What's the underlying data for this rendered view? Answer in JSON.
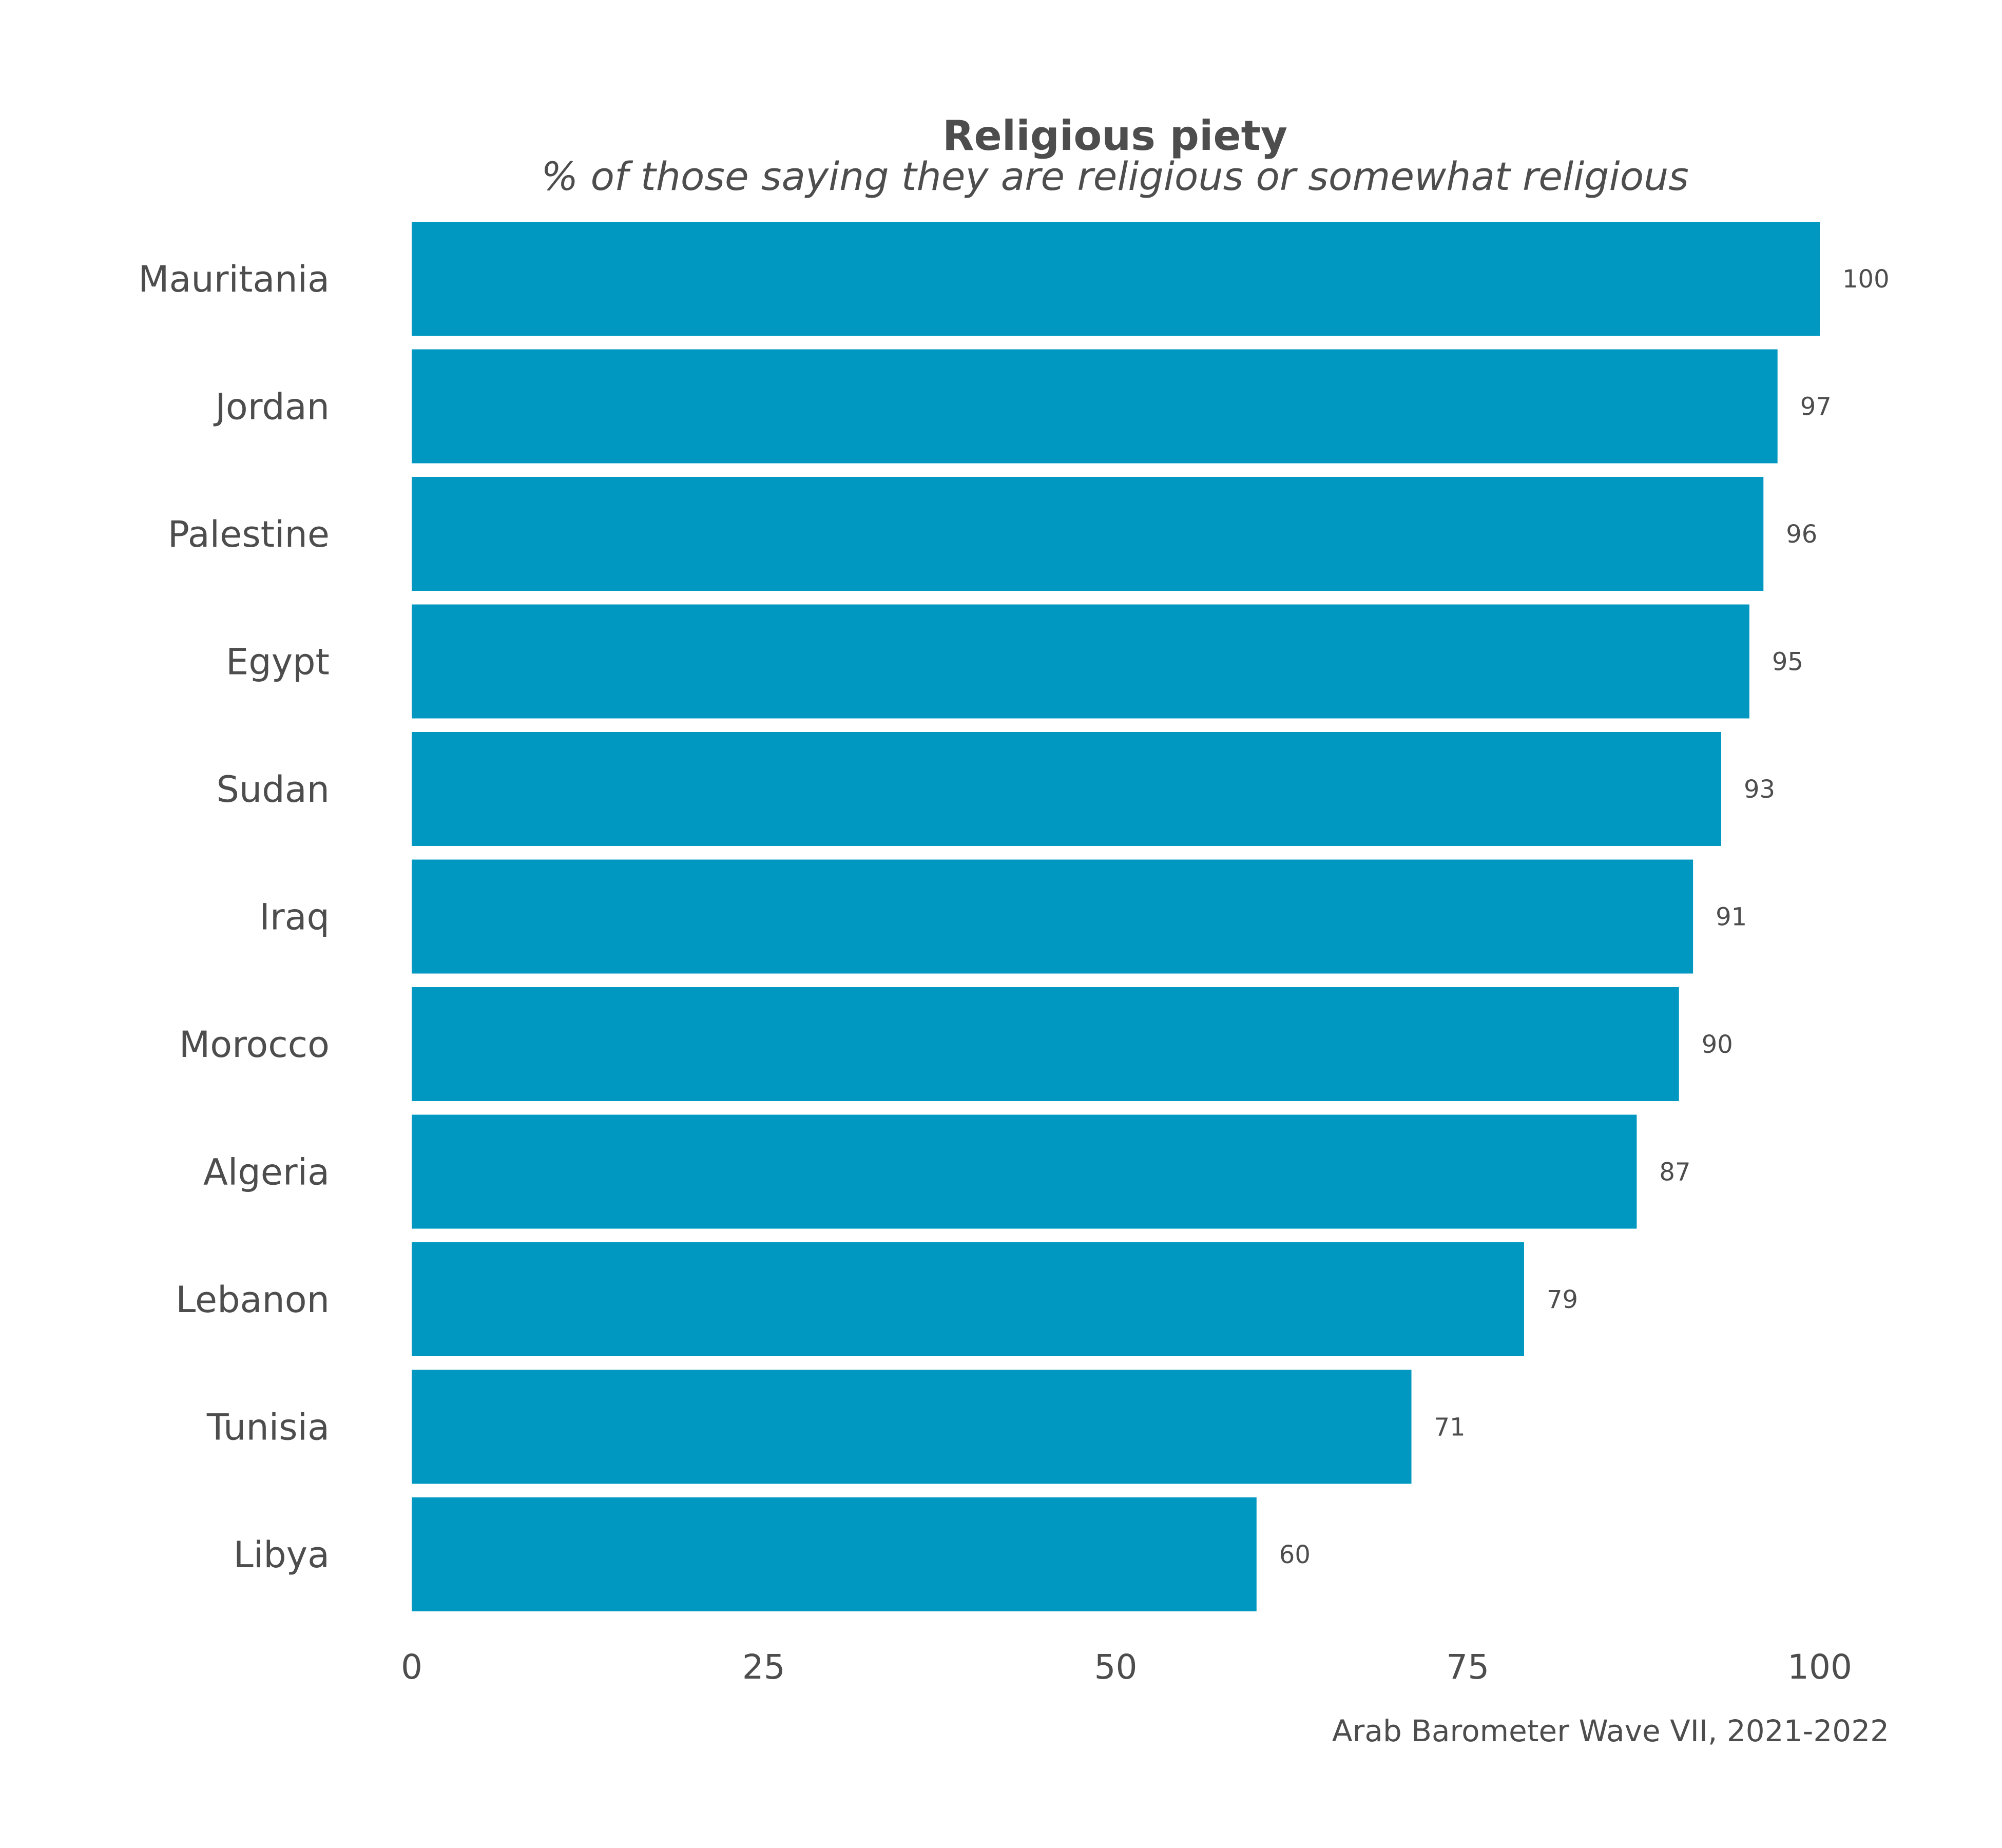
{
  "chart_data": {
    "type": "bar",
    "orientation": "horizontal",
    "title": "Religious piety",
    "subtitle": "% of those saying they are religious or somewhat religious",
    "categories": [
      "Mauritania",
      "Jordan",
      "Palestine",
      "Egypt",
      "Sudan",
      "Iraq",
      "Morocco",
      "Algeria",
      "Lebanon",
      "Tunisia",
      "Libya"
    ],
    "values": [
      100,
      97,
      96,
      95,
      93,
      91,
      90,
      87,
      79,
      71,
      60
    ],
    "value_labels": [
      "100",
      "97",
      "96",
      "95",
      "93",
      "91",
      "90",
      "87",
      "79",
      "71",
      "60"
    ],
    "xlim": [
      0,
      100
    ],
    "x_ticks": [
      0,
      25,
      50,
      75,
      100
    ],
    "x_tick_labels": [
      "0",
      "25",
      "50",
      "75",
      "100"
    ],
    "xlabel": "",
    "ylabel": "",
    "grid": false,
    "legend": "none",
    "caption": "Arab Barometer Wave VII, 2021-2022",
    "bar_color": "#0098c0",
    "text_color": "#4d4d4d",
    "background_color": "#ffffff"
  }
}
